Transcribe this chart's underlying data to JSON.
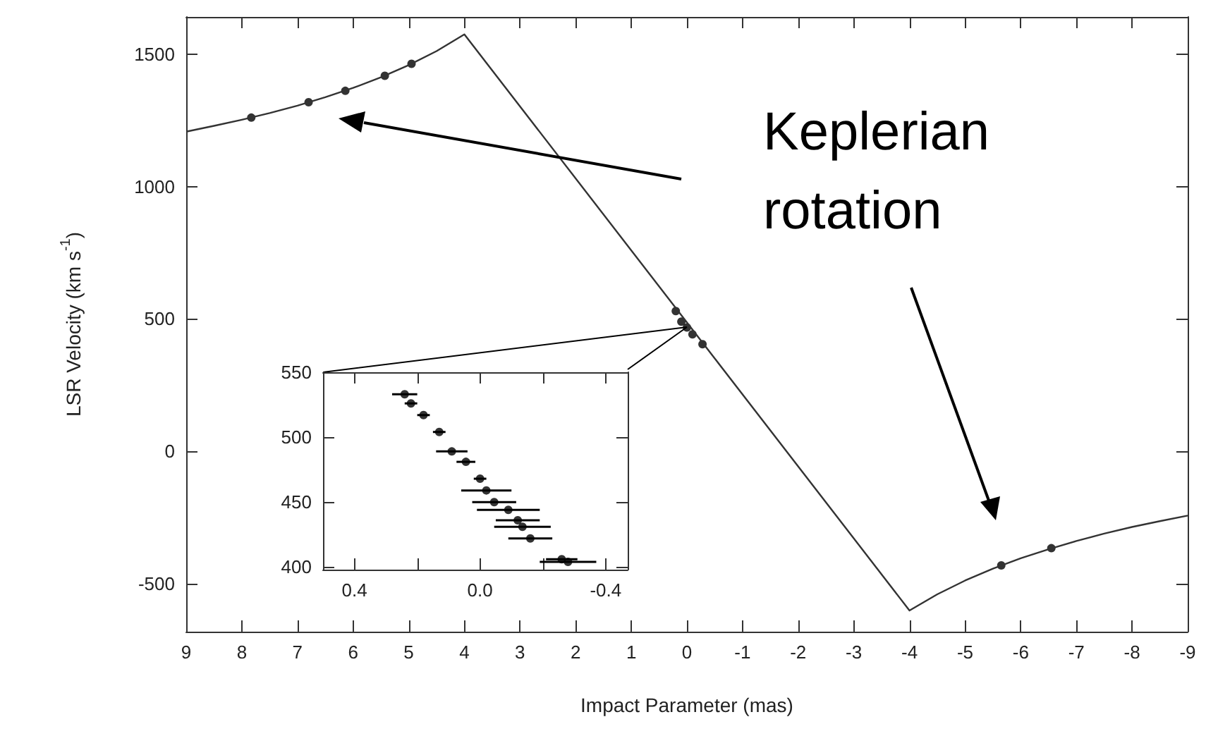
{
  "chart_data": [
    {
      "type": "line",
      "xlabel": "Impact Parameter (mas)",
      "ylabel": "LSR Velocity (km s$^{-1}$)",
      "xlim": [
        9,
        -9
      ],
      "ylim": [
        -680,
        1640
      ],
      "xticks": [
        9,
        8,
        7,
        6,
        5,
        4,
        3,
        2,
        1,
        0,
        -1,
        -2,
        -3,
        -4,
        -5,
        -6,
        -7,
        -8,
        -9
      ],
      "yticks": [
        -500,
        0,
        500,
        1000,
        1500
      ],
      "annotations": [
        "Keplerian rotation"
      ],
      "series": [
        {
          "color": "#333333",
          "marker": "none",
          "x": [
            9,
            8.5,
            8,
            7.5,
            7,
            6.5,
            6,
            5.5,
            5,
            4.5,
            4,
            -4,
            -4.5,
            -5,
            -5.5,
            -6,
            -6.5,
            -7,
            -7.5,
            -8,
            -8.5,
            -9
          ],
          "values": [
            1207,
            1229,
            1252,
            1277,
            1305,
            1337,
            1372,
            1412,
            1458,
            1511,
            1574,
            -600,
            -539,
            -487,
            -442,
            -403,
            -369,
            -338,
            -310,
            -285,
            -263,
            -242
          ]
        },
        {
          "type": "scatter",
          "color": "#000000",
          "marker": "circle",
          "x": [
            7.83,
            6.8,
            6.14,
            5.43,
            4.95,
            0.2,
            0.1,
            0.0,
            -0.1,
            -0.28,
            -5.65,
            -6.55
          ],
          "values": [
            1260,
            1318,
            1361,
            1418,
            1463,
            530,
            490,
            468,
            442,
            405,
            -430,
            -365
          ]
        }
      ]
    },
    {
      "type": "scatter",
      "color": "#000000",
      "marker": "circle",
      "xlim": [
        0.5,
        -0.47
      ],
      "ylim": [
        398,
        550
      ],
      "xticks": [
        {
          "value": 0.4,
          "label": "0.4"
        },
        {
          "value": 0.2,
          "label": null
        },
        {
          "value": 0,
          "label": "0.0"
        },
        {
          "value": -0.2,
          "label": null
        },
        {
          "value": -0.4,
          "label": "-0.4"
        }
      ],
      "yticks": [
        400,
        450,
        500,
        550
      ],
      "x": [
        0.24,
        0.22,
        0.18,
        0.13,
        0.09,
        0.045,
        0.0,
        -0.02,
        -0.045,
        -0.09,
        -0.12,
        -0.135,
        -0.16,
        -0.26,
        -0.28
      ],
      "values": [
        533,
        526,
        517,
        504,
        489,
        481,
        468,
        459,
        450,
        444,
        436,
        431,
        422,
        406,
        404
      ],
      "xerrors": [
        0.04,
        0.02,
        0.02,
        0.02,
        0.05,
        0.03,
        0.02,
        0.08,
        0.07,
        0.1,
        0.07,
        0.09,
        0.07,
        0.05,
        0.09
      ]
    }
  ]
}
